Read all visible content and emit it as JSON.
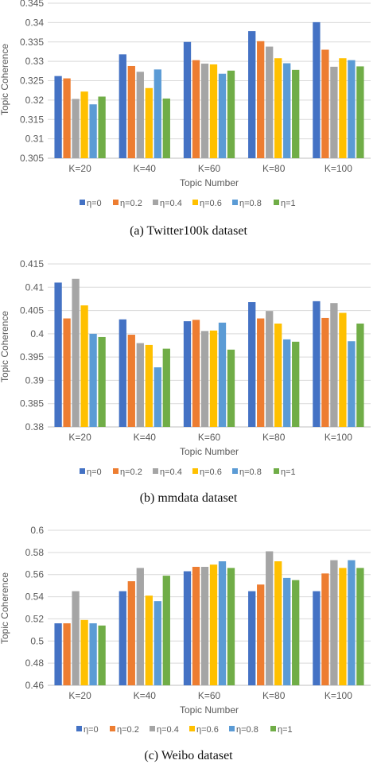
{
  "colors": {
    "series": [
      "#4472C4",
      "#ED7D31",
      "#A5A5A5",
      "#FFC000",
      "#5B9BD5",
      "#70AD47"
    ],
    "grid": "#d9d9d9",
    "text": "#595959"
  },
  "chart_data": [
    {
      "type": "bar",
      "caption": "(a)  Twitter100k dataset",
      "ylabel": "Topic Coherence",
      "xlabel": "Topic Number",
      "ylim": [
        0.305,
        0.345
      ],
      "ytick_step": 0.005,
      "ytick_labels": [
        "0.305",
        "0.31",
        "0.315",
        "0.32",
        "0.325",
        "0.33",
        "0.335",
        "0.34",
        "0.345"
      ],
      "categories": [
        "K=20",
        "K=40",
        "K=60",
        "K=80",
        "K=100"
      ],
      "grid": true,
      "legend": "bottom",
      "series": [
        {
          "name": "η=0",
          "values": [
            0.3262,
            0.3318,
            0.335,
            0.3378,
            0.3401
          ]
        },
        {
          "name": "η=0.2",
          "values": [
            0.3256,
            0.3288,
            0.3303,
            0.3352,
            0.333
          ]
        },
        {
          "name": "η=0.4",
          "values": [
            0.3203,
            0.3273,
            0.3294,
            0.3338,
            0.3286
          ]
        },
        {
          "name": "η=0.6",
          "values": [
            0.3222,
            0.3231,
            0.3292,
            0.3308,
            0.3308
          ]
        },
        {
          "name": "η=0.8",
          "values": [
            0.3189,
            0.3279,
            0.3268,
            0.3295,
            0.3303
          ]
        },
        {
          "name": "η=1",
          "values": [
            0.3209,
            0.3204,
            0.3276,
            0.3278,
            0.3287
          ]
        }
      ]
    },
    {
      "type": "bar",
      "caption": "(b)  mmdata dataset",
      "ylabel": "Topic Coherence",
      "xlabel": "Topic Number",
      "ylim": [
        0.38,
        0.415
      ],
      "ytick_step": 0.005,
      "ytick_labels": [
        "0.38",
        "0.385",
        "0.39",
        "0.395",
        "0.4",
        "0.405",
        "0.41",
        "0.415"
      ],
      "categories": [
        "K=20",
        "K=40",
        "K=60",
        "K=80",
        "K=100"
      ],
      "grid": true,
      "legend": "bottom",
      "series": [
        {
          "name": "η=0",
          "values": [
            0.411,
            0.4031,
            0.4027,
            0.4068,
            0.407
          ]
        },
        {
          "name": "η=0.2",
          "values": [
            0.4033,
            0.3998,
            0.403,
            0.4033,
            0.4034
          ]
        },
        {
          "name": "η=0.4",
          "values": [
            0.4118,
            0.398,
            0.4006,
            0.4049,
            0.4066
          ]
        },
        {
          "name": "η=0.6",
          "values": [
            0.4061,
            0.3976,
            0.4007,
            0.4022,
            0.4045
          ]
        },
        {
          "name": "η=0.8",
          "values": [
            0.4,
            0.3928,
            0.4024,
            0.3988,
            0.3984
          ]
        },
        {
          "name": "η=1",
          "values": [
            0.3993,
            0.3968,
            0.3966,
            0.3983,
            0.4022
          ]
        }
      ]
    },
    {
      "type": "bar",
      "caption": "(c)  Weibo dataset",
      "ylabel": "Topic Coherence",
      "xlabel": "Topic Number",
      "ylim": [
        0.46,
        0.6
      ],
      "ytick_step": 0.02,
      "ytick_labels": [
        "0.46",
        "0.48",
        "0.5",
        "0.52",
        "0.54",
        "0.56",
        "0.58",
        "0.6"
      ],
      "categories": [
        "K=20",
        "K=40",
        "K=60",
        "K=80",
        "K=100"
      ],
      "grid": true,
      "legend": "bottom",
      "series": [
        {
          "name": "η=0",
          "values": [
            0.516,
            0.545,
            0.563,
            0.545,
            0.545
          ]
        },
        {
          "name": "η=0.2",
          "values": [
            0.516,
            0.554,
            0.567,
            0.551,
            0.561
          ]
        },
        {
          "name": "η=0.4",
          "values": [
            0.545,
            0.566,
            0.567,
            0.581,
            0.573
          ]
        },
        {
          "name": "η=0.6",
          "values": [
            0.519,
            0.541,
            0.569,
            0.572,
            0.566
          ]
        },
        {
          "name": "η=0.8",
          "values": [
            0.516,
            0.536,
            0.572,
            0.557,
            0.573
          ]
        },
        {
          "name": "η=1",
          "values": [
            0.514,
            0.559,
            0.566,
            0.555,
            0.566
          ]
        }
      ]
    }
  ]
}
